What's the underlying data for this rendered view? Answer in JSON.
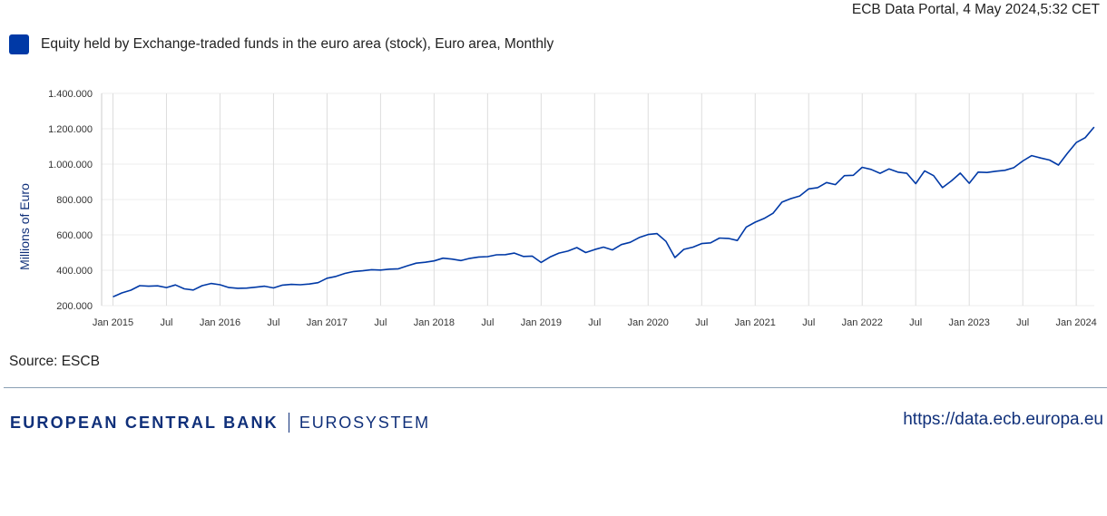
{
  "header": {
    "stamp": "ECB Data Portal, 4 May 2024,5:32 CET"
  },
  "legend": {
    "label": "Equity held by Exchange-traded funds in the euro area (stock), Euro area, Monthly",
    "color": "#0039a6"
  },
  "source": "Source: ESCB",
  "footer": {
    "bank_name": "EUROPEAN CENTRAL BANK",
    "system_name": "EUROSYSTEM",
    "url": "https://data.ecb.europa.eu"
  },
  "chart_data": {
    "type": "line",
    "ylabel": "Millions of Euro",
    "ylim": [
      200000,
      1400000
    ],
    "yticks": [
      200000,
      400000,
      600000,
      800000,
      1000000,
      1200000,
      1400000
    ],
    "ytick_labels": [
      "200.000",
      "400.000",
      "600.000",
      "800.000",
      "1.000.000",
      "1.200.000",
      "1.400.000"
    ],
    "x_start": "2015-01",
    "xtick_labels": [
      {
        "index": 0,
        "label": "Jan 2015"
      },
      {
        "index": 6,
        "label": "Jul"
      },
      {
        "index": 12,
        "label": "Jan 2016"
      },
      {
        "index": 18,
        "label": "Jul"
      },
      {
        "index": 24,
        "label": "Jan 2017"
      },
      {
        "index": 30,
        "label": "Jul"
      },
      {
        "index": 36,
        "label": "Jan 2018"
      },
      {
        "index": 42,
        "label": "Jul"
      },
      {
        "index": 48,
        "label": "Jan 2019"
      },
      {
        "index": 54,
        "label": "Jul"
      },
      {
        "index": 60,
        "label": "Jan 2020"
      },
      {
        "index": 66,
        "label": "Jul"
      },
      {
        "index": 72,
        "label": "Jan 2021"
      },
      {
        "index": 78,
        "label": "Jul"
      },
      {
        "index": 84,
        "label": "Jan 2022"
      },
      {
        "index": 90,
        "label": "Jul"
      },
      {
        "index": 96,
        "label": "Jan 2023"
      },
      {
        "index": 102,
        "label": "Jul"
      },
      {
        "index": 108,
        "label": "Jan 2024"
      }
    ],
    "grid": true,
    "series": [
      {
        "color": "#0039a6",
        "values": [
          250000,
          272000,
          287000,
          313000,
          310000,
          312000,
          302000,
          317000,
          295000,
          288000,
          313000,
          325000,
          318000,
          302000,
          298000,
          299000,
          304000,
          310000,
          300000,
          316000,
          320000,
          318000,
          322000,
          330000,
          355000,
          365000,
          382000,
          393000,
          397000,
          403000,
          401000,
          406000,
          408000,
          425000,
          440000,
          445000,
          453000,
          468000,
          463000,
          455000,
          467000,
          475000,
          477000,
          487000,
          488000,
          497000,
          478000,
          480000,
          444000,
          475000,
          497000,
          508000,
          528000,
          500000,
          517000,
          531000,
          515000,
          545000,
          558000,
          585000,
          602000,
          607000,
          563000,
          472000,
          518000,
          530000,
          551000,
          555000,
          582000,
          580000,
          568000,
          644000,
          672000,
          693000,
          722000,
          785000,
          805000,
          820000,
          860000,
          867000,
          896000,
          884000,
          935000,
          937000,
          982000,
          970000,
          948000,
          973000,
          955000,
          948000,
          890000,
          962000,
          935000,
          867000,
          905000,
          949000,
          892000,
          955000,
          953000,
          960000,
          965000,
          980000,
          1018000,
          1048000,
          1035000,
          1023000,
          995000,
          1061000,
          1122000,
          1150000,
          1210000
        ]
      }
    ]
  }
}
